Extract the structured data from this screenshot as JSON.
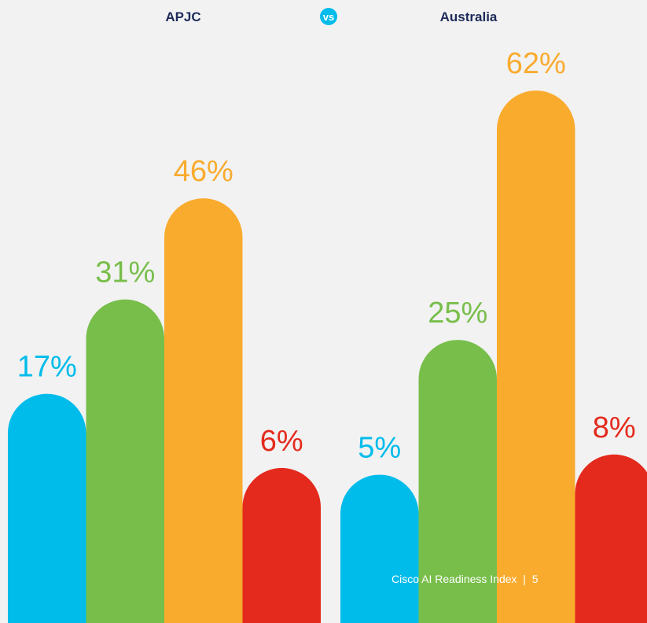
{
  "chart_data": {
    "type": "rounded-bar",
    "groups": [
      {
        "name": "APJC",
        "values": [
          17,
          31,
          46,
          6
        ],
        "value_labels": [
          "17%",
          "31%",
          "46%",
          "6%"
        ]
      },
      {
        "name": "Australia",
        "values": [
          5,
          25,
          62,
          8
        ],
        "value_labels": [
          "5%",
          "25%",
          "62%",
          "8%"
        ]
      }
    ],
    "colors": [
      "#00bceb",
      "#78be4a",
      "#f9ab2e",
      "#e42a1d"
    ],
    "separator": "vs",
    "footer": "Cisco AI Readiness Index  |  5",
    "ylim": [
      -17,
      68
    ]
  }
}
